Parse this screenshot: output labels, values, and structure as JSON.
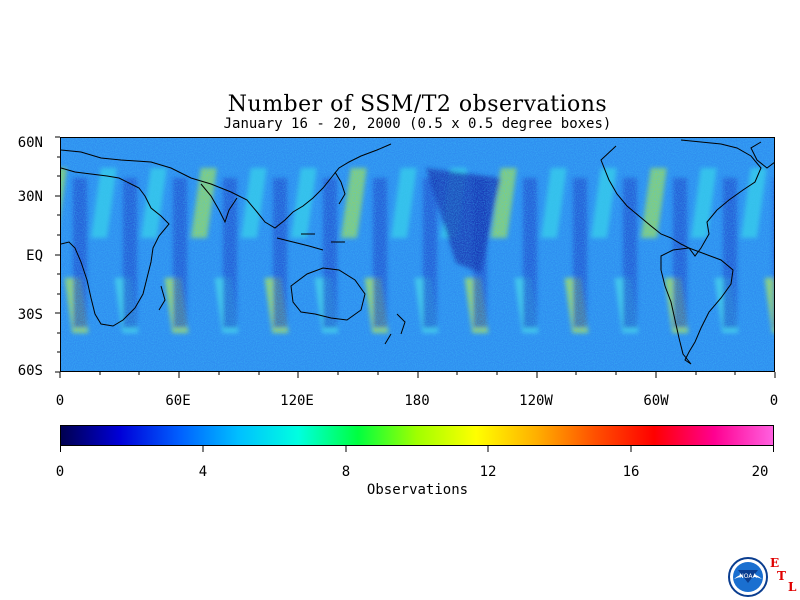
{
  "title": "Number of SSM/T2 observations",
  "subtitle": "January 16 - 20, 2000 (0.5 x 0.5 degree boxes)",
  "map": {
    "lat_ticks": [
      "60N",
      "30N",
      "EQ",
      "30S",
      "60S"
    ],
    "lon_ticks": [
      "0",
      "60E",
      "120E",
      "180",
      "120W",
      "60W",
      "0"
    ]
  },
  "colorbar": {
    "label": "Observations",
    "ticks": [
      "0",
      "4",
      "8",
      "12",
      "16",
      "20"
    ],
    "range": [
      0,
      20
    ],
    "colors": [
      "#000050",
      "#0000d8",
      "#0060ff",
      "#00c0ff",
      "#00ffe0",
      "#00ff40",
      "#a0ff00",
      "#ffff00",
      "#ffb000",
      "#ff5000",
      "#ff0000",
      "#ff0090",
      "#ff60e0"
    ]
  },
  "logos": {
    "noaa_text": "NOAA",
    "etl_letters": [
      "E",
      "T",
      "L"
    ]
  }
}
